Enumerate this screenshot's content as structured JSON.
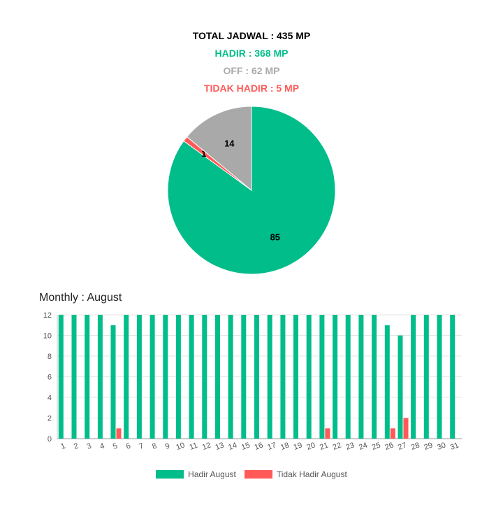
{
  "summary": {
    "total": "TOTAL JADWAL : 435 MP",
    "hadir": "HADIR : 368 MP",
    "off": "OFF : 62 MP",
    "tidak_hadir": "TIDAK HADIR : 5 MP"
  },
  "colors": {
    "hadir": "#00bd8a",
    "off": "#a9a9a9",
    "tidak_hadir": "#ff5a57",
    "total": "#000000"
  },
  "chart_data": [
    {
      "type": "pie",
      "slices": [
        {
          "label": "85",
          "value": 85,
          "color": "#00bd8a"
        },
        {
          "label": "1",
          "value": 1,
          "color": "#ff5a57"
        },
        {
          "label": "14",
          "value": 14,
          "color": "#a9a9a9"
        }
      ]
    },
    {
      "type": "bar",
      "title": "Monthly : August",
      "categories": [
        "1",
        "2",
        "3",
        "4",
        "5",
        "6",
        "7",
        "8",
        "9",
        "10",
        "11",
        "12",
        "13",
        "14",
        "15",
        "16",
        "17",
        "18",
        "19",
        "20",
        "21",
        "22",
        "23",
        "24",
        "25",
        "26",
        "27",
        "28",
        "29",
        "30",
        "31"
      ],
      "series": [
        {
          "name": "Hadir August",
          "color": "#00bd8a",
          "values": [
            12,
            12,
            12,
            12,
            11,
            12,
            12,
            12,
            12,
            12,
            12,
            12,
            12,
            12,
            12,
            12,
            12,
            12,
            12,
            12,
            12,
            12,
            12,
            12,
            12,
            11,
            10,
            12,
            12,
            12,
            12
          ]
        },
        {
          "name": "Tidak Hadir August",
          "color": "#ff5a57",
          "values": [
            0,
            0,
            0,
            0,
            1,
            0,
            0,
            0,
            0,
            0,
            0,
            0,
            0,
            0,
            0,
            0,
            0,
            0,
            0,
            0,
            1,
            0,
            0,
            0,
            0,
            1,
            2,
            0,
            0,
            0,
            0
          ]
        }
      ],
      "ylim": [
        0,
        12
      ],
      "yticks": [
        "0",
        "2",
        "4",
        "6",
        "8",
        "10",
        "12"
      ],
      "grid": true,
      "legend": "bottom"
    }
  ]
}
